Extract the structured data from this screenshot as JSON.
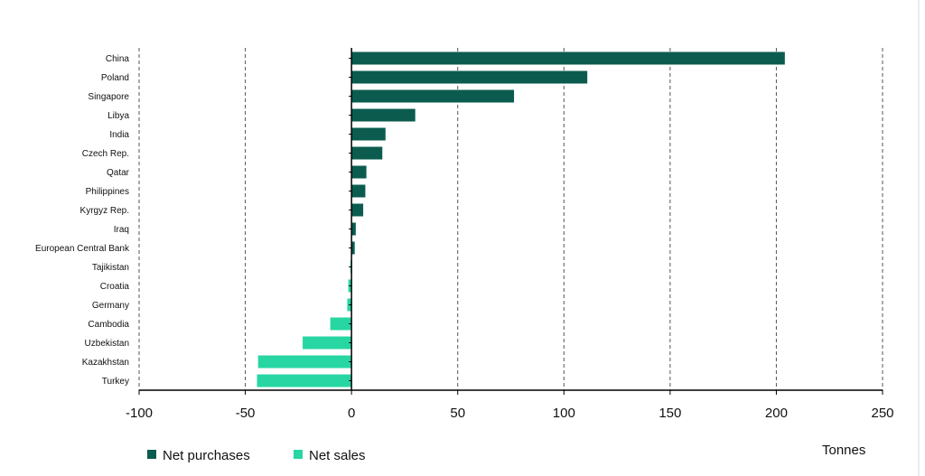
{
  "chart_data": {
    "type": "bar",
    "orientation": "horizontal",
    "title": "",
    "xlabel": "Tonnes",
    "ylabel": "",
    "xlim": [
      -100,
      250
    ],
    "xticks": [
      -100,
      -50,
      0,
      50,
      100,
      150,
      200,
      250
    ],
    "grid": "vertical dashed",
    "legend_position": "bottom-left",
    "categories": [
      "China",
      "Poland",
      "Singapore",
      "Libya",
      "India",
      "Czech Rep.",
      "Qatar",
      "Philippines",
      "Kyrgyz Rep.",
      "Iraq",
      "European Central Bank",
      "Tajikistan",
      "Croatia",
      "Germany",
      "Cambodia",
      "Uzbekistan",
      "Kazakhstan",
      "Turkey"
    ],
    "values": [
      204,
      111,
      76.5,
      30,
      16,
      14.5,
      7,
      6.5,
      5.5,
      2,
      1.5,
      -0.5,
      -1.5,
      -2,
      -10,
      -23,
      -44,
      -44.5
    ],
    "series": [
      {
        "name": "Net purchases",
        "color": "#0b5c4e"
      },
      {
        "name": "Net sales",
        "color": "#27d6a3"
      }
    ]
  }
}
